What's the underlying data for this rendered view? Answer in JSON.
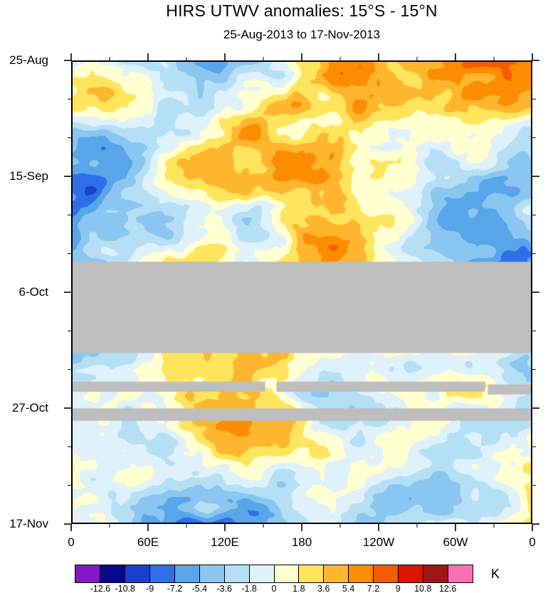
{
  "chart_data": {
    "type": "heatmap",
    "title": "HIRS UTWV anomalies: 15°S - 15°N",
    "subtitle": "25-Aug-2013 to 17-Nov-2013",
    "xlabel": "",
    "ylabel": "",
    "orientation": "Hovmoller diagram: longitude on x axis (0 eastward around globe to 0), time on y axis increasing downward",
    "x_ticks": [
      {
        "pos": 0.0,
        "label": "0"
      },
      {
        "pos": 0.1667,
        "label": "60E"
      },
      {
        "pos": 0.3333,
        "label": "120E"
      },
      {
        "pos": 0.5,
        "label": "180"
      },
      {
        "pos": 0.6667,
        "label": "120W"
      },
      {
        "pos": 0.8333,
        "label": "60W"
      },
      {
        "pos": 1.0,
        "label": "0"
      }
    ],
    "x_minor_divisions": 12,
    "y_ticks": [
      {
        "pos": 0.0,
        "label": "25-Aug"
      },
      {
        "pos": 0.25,
        "label": "15-Sep"
      },
      {
        "pos": 0.5,
        "label": "6-Oct"
      },
      {
        "pos": 0.75,
        "label": "27-Oct"
      },
      {
        "pos": 1.0,
        "label": "17-Nov"
      }
    ],
    "y_minor_divisions": 12,
    "units": "K",
    "levels": [
      -12.6,
      -10.8,
      -9,
      -7.2,
      -5.4,
      -3.6,
      -1.8,
      0,
      1.8,
      3.6,
      5.4,
      7.2,
      9,
      10.8,
      12.6
    ],
    "palette": [
      "#8616C8",
      "#08088F",
      "#1C3FD0",
      "#2E6FE8",
      "#58A5EA",
      "#8AC6EF",
      "#B5DFF5",
      "#DFF1FA",
      "#FFFFD0",
      "#FFE45C",
      "#FFB52E",
      "#FD8D00",
      "#F55B00",
      "#DD1500",
      "#9E1616",
      "#FF6EB4"
    ],
    "missing_data_color": "#BEBEBE",
    "missing_data_bands": [
      {
        "y0": 0.434,
        "y1": 0.632,
        "x0": 0.0,
        "x1": 1.0
      },
      {
        "y0": 0.694,
        "y1": 0.716,
        "x0": 0.0,
        "x1": 0.42
      },
      {
        "y0": 0.694,
        "y1": 0.716,
        "x0": 0.445,
        "x1": 0.9
      },
      {
        "y0": 0.7,
        "y1": 0.722,
        "x0": 0.906,
        "x1": 1.0
      },
      {
        "y0": 0.752,
        "y1": 0.779,
        "x0": 0.0,
        "x1": 1.0
      }
    ],
    "field_summary": "Filled-contour anomaly field of mesoscale patches, mostly between -5.4 and +7.2 K; cream/yellow (0 to 3.6 K) dominates with scattered orange/red warm blobs and light-to-mid blue cool blobs; a strong dark-blue cool patch near 50E in mid-November; gray bands mark missing data around early October and just after 27 October."
  }
}
